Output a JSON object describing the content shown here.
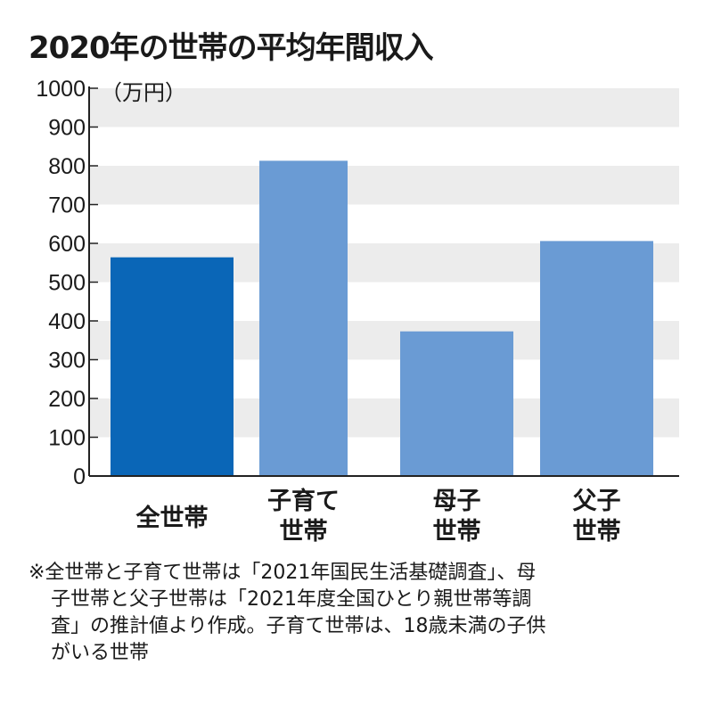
{
  "chart_data": {
    "type": "bar",
    "title": "2020年の世帯の平均年間収入",
    "unit": "（万円）",
    "categories": [
      "全世帯",
      "子育て\n世帯",
      "母子\n世帯",
      "父子\n世帯"
    ],
    "values": [
      564,
      813,
      373,
      606
    ],
    "ylim": [
      0,
      1000
    ],
    "yticks": [
      0,
      100,
      200,
      300,
      400,
      500,
      600,
      700,
      800,
      900,
      1000
    ],
    "colors": [
      "#0a66b7",
      "#6a9bd4",
      "#6a9bd4",
      "#6a9bd4"
    ],
    "band_color": "#ececec",
    "legend": "none"
  },
  "note": {
    "line1": "※全世帯と子育て世帯は「2021年国民生活基礎調査」、母",
    "line2": "子世帯と父子世帯は「2021年度全国ひとり親世帯等調",
    "line3": "査」の推計値より作成。子育て世帯は、18歳未満の子供",
    "line4": "がいる世帯"
  }
}
